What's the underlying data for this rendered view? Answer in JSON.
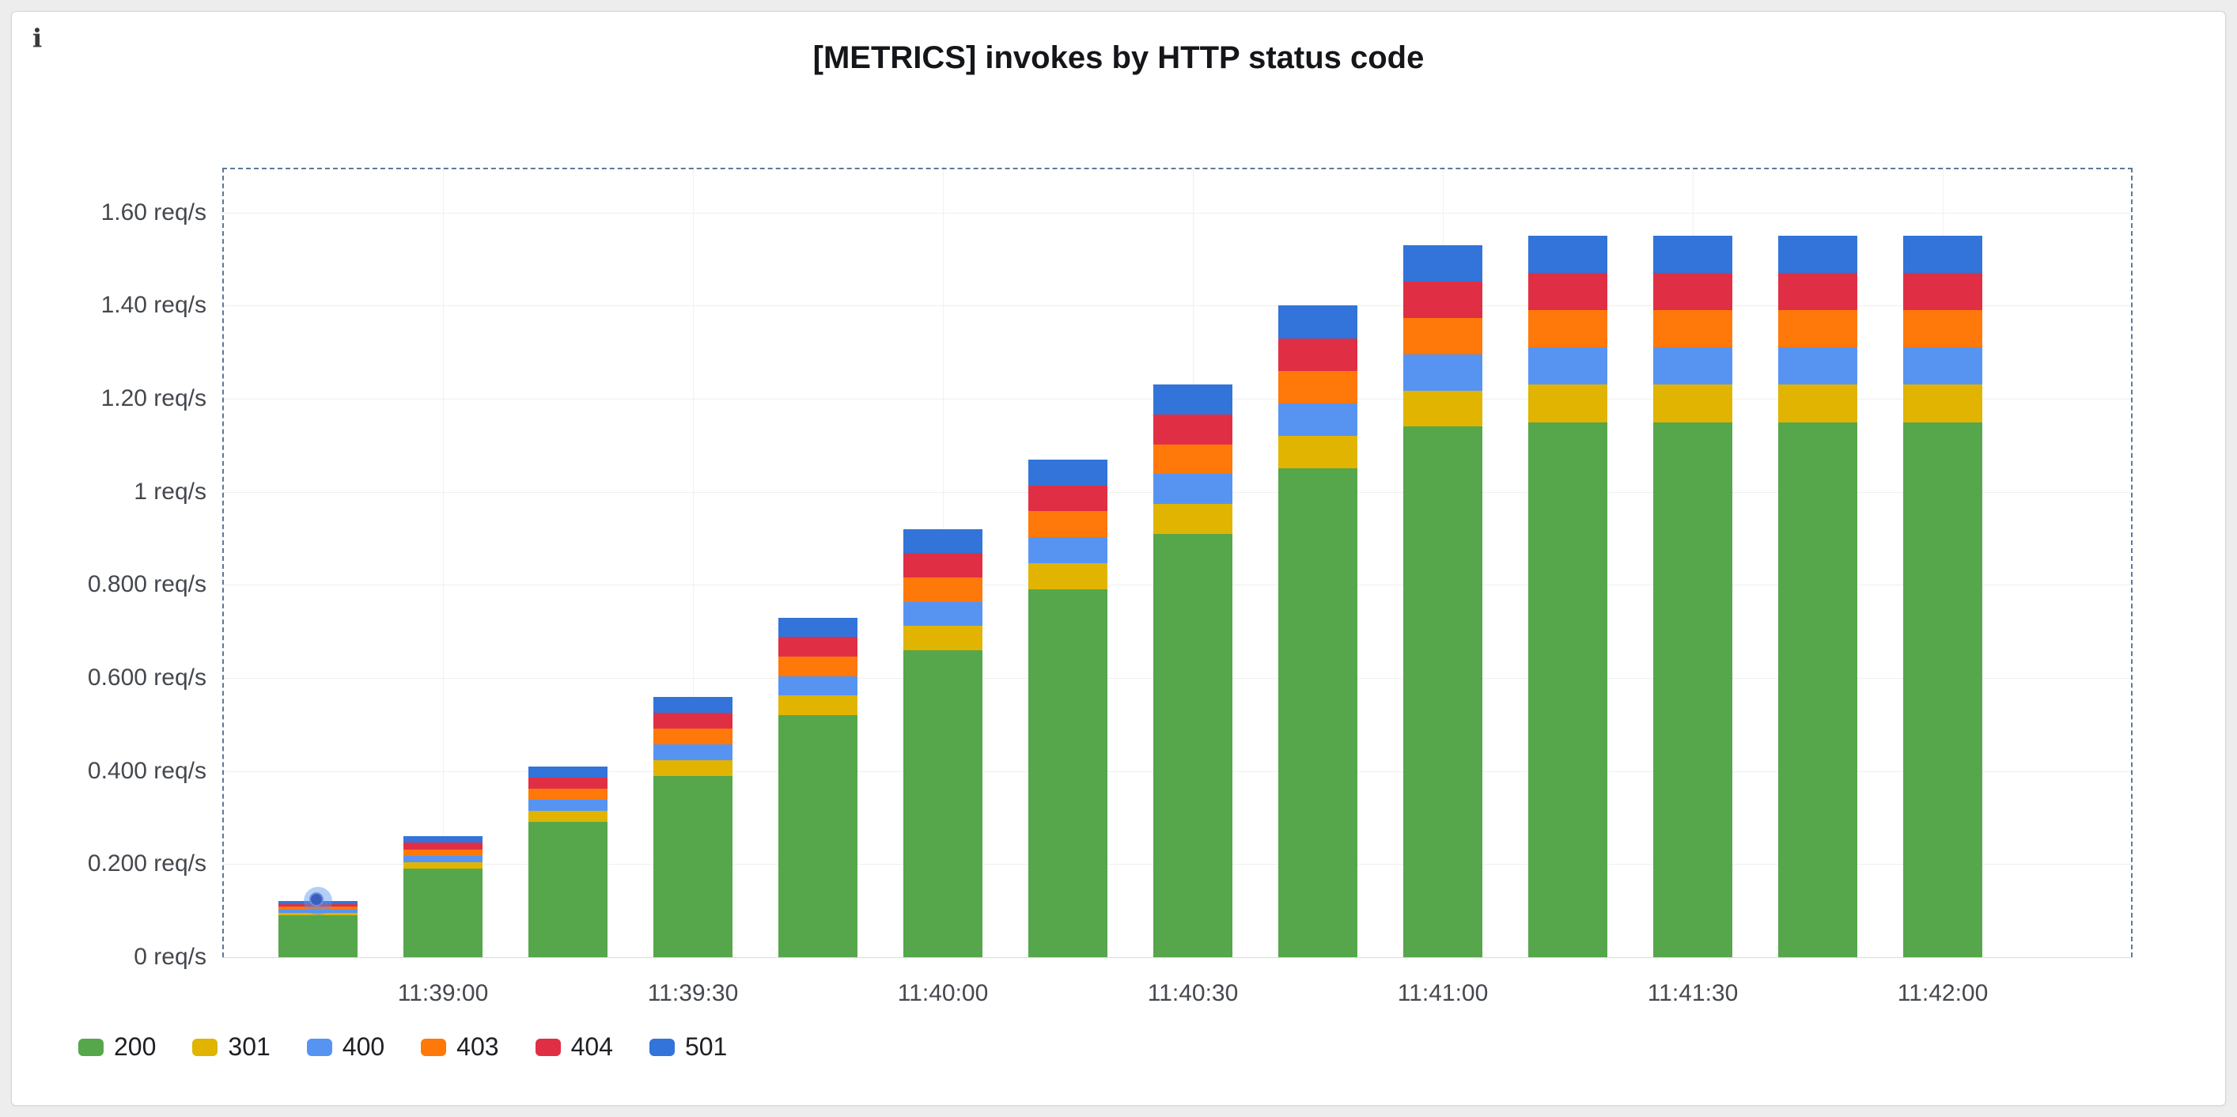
{
  "panel": {
    "title": "[METRICS] invokes by HTTP status code",
    "info_icon": "i"
  },
  "colors": {
    "page_bg": "#EDEDEE",
    "panel_bg": "#FFFFFF",
    "panel_border": "#D5D6D8",
    "grid": "#EFEFEF",
    "axis_text": "#44484E",
    "title_text": "#141619",
    "selection_dash": "#5B7A99",
    "hover_point": "#3B5FC1"
  },
  "chart_data": {
    "type": "bar",
    "stacked": true,
    "title": "[METRICS] invokes by HTTP status code",
    "unit": "req/s",
    "xlabel": "",
    "ylabel": "req/s",
    "ylim": [
      0,
      1.7
    ],
    "grid": true,
    "legend_position": "bottom-left",
    "y_ticks": [
      0,
      0.2,
      0.4,
      0.6,
      0.8,
      1,
      1.2,
      1.4,
      1.6
    ],
    "y_tick_labels": [
      "0 req/s",
      "0.200 req/s",
      "0.400 req/s",
      "0.600 req/s",
      "0.800 req/s",
      "1 req/s",
      "1.20 req/s",
      "1.40 req/s",
      "1.60 req/s"
    ],
    "x_ticks": [
      {
        "index": 1,
        "label": "11:39:00"
      },
      {
        "index": 3,
        "label": "11:39:30"
      },
      {
        "index": 5,
        "label": "11:40:00"
      },
      {
        "index": 7,
        "label": "11:40:30"
      },
      {
        "index": 9,
        "label": "11:41:00"
      },
      {
        "index": 11,
        "label": "11:41:30"
      },
      {
        "index": 13,
        "label": "11:42:00"
      }
    ],
    "categories": [
      "11:38:45",
      "11:39:00",
      "11:39:15",
      "11:39:30",
      "11:39:45",
      "11:40:00",
      "11:40:15",
      "11:40:30",
      "11:40:45",
      "11:41:00",
      "11:41:15",
      "11:41:30",
      "11:41:45",
      "11:42:00"
    ],
    "series": [
      {
        "name": "200",
        "color": "#56A64B",
        "values": [
          0.09,
          0.19,
          0.29,
          0.39,
          0.52,
          0.66,
          0.79,
          0.91,
          1.05,
          1.14,
          1.15,
          1.15,
          1.15,
          1.15
        ]
      },
      {
        "name": "301",
        "color": "#E0B400",
        "values": [
          0.006,
          0.014,
          0.024,
          0.034,
          0.042,
          0.052,
          0.056,
          0.064,
          0.07,
          0.078,
          0.08,
          0.08,
          0.08,
          0.08
        ]
      },
      {
        "name": "400",
        "color": "#5794F2",
        "values": [
          0.006,
          0.014,
          0.024,
          0.034,
          0.042,
          0.052,
          0.056,
          0.064,
          0.07,
          0.078,
          0.08,
          0.08,
          0.08,
          0.08
        ]
      },
      {
        "name": "403",
        "color": "#FF780A",
        "values": [
          0.006,
          0.014,
          0.024,
          0.034,
          0.042,
          0.052,
          0.056,
          0.064,
          0.07,
          0.078,
          0.08,
          0.08,
          0.08,
          0.08
        ]
      },
      {
        "name": "404",
        "color": "#E02F44",
        "values": [
          0.006,
          0.014,
          0.024,
          0.034,
          0.042,
          0.052,
          0.056,
          0.064,
          0.07,
          0.078,
          0.08,
          0.08,
          0.08,
          0.08
        ]
      },
      {
        "name": "501",
        "color": "#3274D9",
        "values": [
          0.006,
          0.014,
          0.024,
          0.034,
          0.042,
          0.052,
          0.056,
          0.064,
          0.07,
          0.078,
          0.08,
          0.08,
          0.08,
          0.08
        ]
      }
    ],
    "hover_point": {
      "category_index": 0,
      "value": 0.12
    }
  }
}
